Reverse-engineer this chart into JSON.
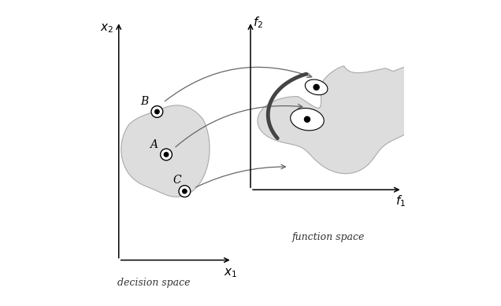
{
  "background_color": "#ffffff",
  "decision_space_label": "decision space",
  "function_space_label": "function space",
  "x1_label": "$x_1$",
  "x2_label": "$x_2$",
  "f1_label": "$f_1$",
  "f2_label": "$f_2$",
  "shape_fill": "#dddddd",
  "shape_edge": "#aaaaaa",
  "axis_color": "#000000",
  "arrow_color": "#666666",
  "pareto_color": "#444444",
  "label_fontsize": 11,
  "annot_fontsize": 10,
  "space_label_fontsize": 9
}
